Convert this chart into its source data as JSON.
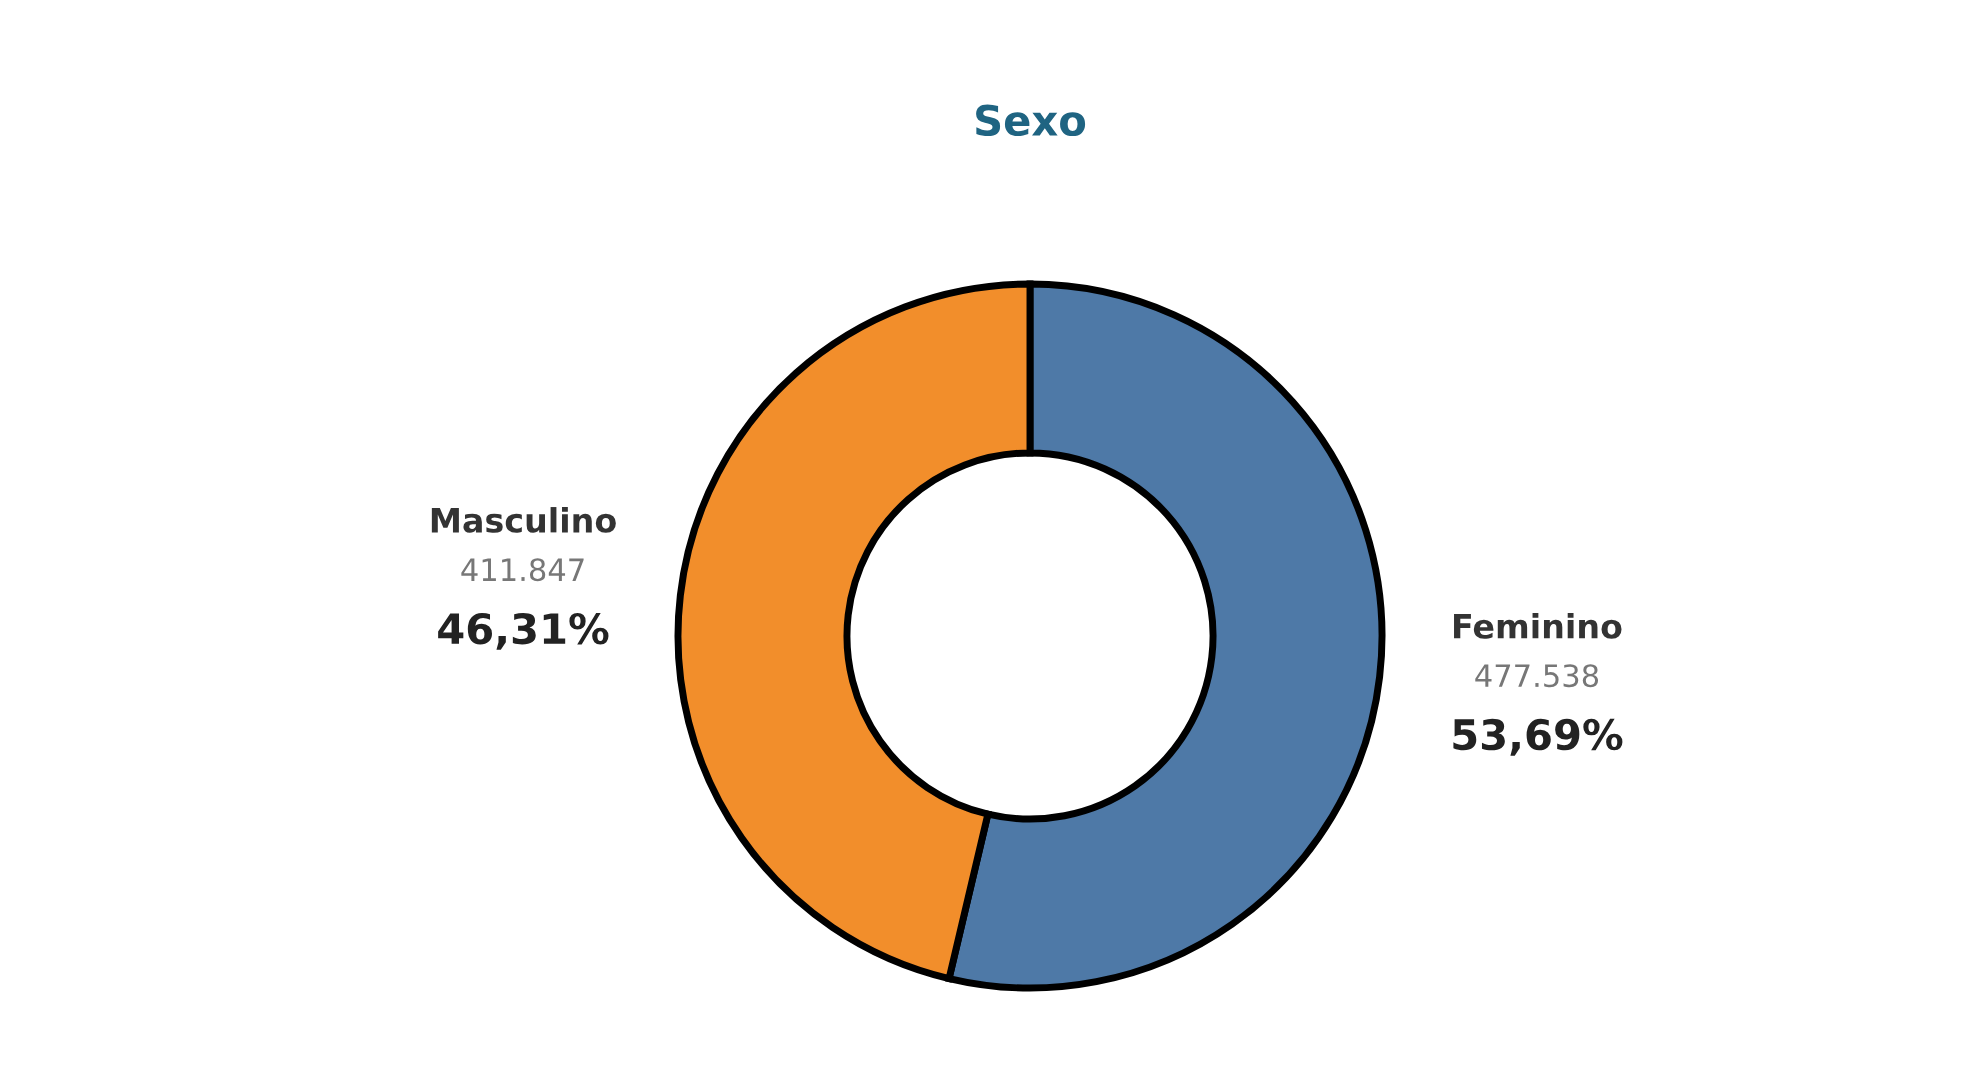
{
  "chart_data": {
    "type": "donut",
    "title": "Sexo",
    "categories": [
      "Feminino",
      "Masculino"
    ],
    "values": [
      477538,
      411847
    ],
    "colors": [
      "#4e79a7",
      "#f28e2b"
    ],
    "value_labels": [
      "477.538",
      "411.847"
    ],
    "annotations": [
      {
        "text": "53,69%",
        "x": "Feminino"
      },
      {
        "text": "46,31%",
        "x": "Masculino"
      }
    ],
    "legend": false
  }
}
